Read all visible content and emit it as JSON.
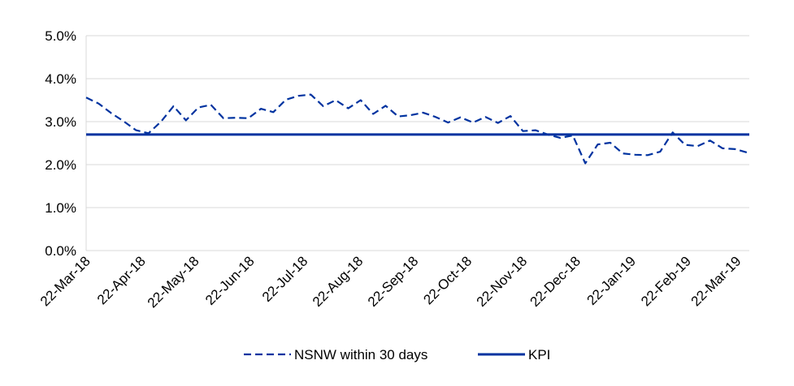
{
  "colors": {
    "series": "#0033a0",
    "grid": "#d9d9d9"
  },
  "chart_data": {
    "type": "line",
    "title": "",
    "xlabel": "",
    "ylabel": "",
    "ylim": [
      0,
      0.05
    ],
    "yticks": [
      "0.0%",
      "1.0%",
      "2.0%",
      "3.0%",
      "4.0%",
      "5.0%"
    ],
    "xlim": [
      "2018-03-22",
      "2019-03-29"
    ],
    "xticks": [
      {
        "date": "2018-03-22",
        "label": "22-Mar-18"
      },
      {
        "date": "2018-04-22",
        "label": "22-Apr-18"
      },
      {
        "date": "2018-05-22",
        "label": "22-May-18"
      },
      {
        "date": "2018-06-22",
        "label": "22-Jun-18"
      },
      {
        "date": "2018-07-22",
        "label": "22-Jul-18"
      },
      {
        "date": "2018-08-22",
        "label": "22-Aug-18"
      },
      {
        "date": "2018-09-22",
        "label": "22-Sep-18"
      },
      {
        "date": "2018-10-22",
        "label": "22-Oct-18"
      },
      {
        "date": "2018-11-22",
        "label": "22-Nov-18"
      },
      {
        "date": "2018-12-22",
        "label": "22-Dec-18"
      },
      {
        "date": "2019-01-22",
        "label": "22-Jan-19"
      },
      {
        "date": "2019-02-22",
        "label": "22-Feb-19"
      },
      {
        "date": "2019-03-22",
        "label": "22-Mar-19"
      }
    ],
    "grid": true,
    "legend_position": "bottom",
    "series": [
      {
        "name": "NSNW within 30 days",
        "style": "dashed",
        "points": [
          [
            "2018-03-22",
            0.0356
          ],
          [
            "2018-03-29",
            0.0342
          ],
          [
            "2018-04-05",
            0.032
          ],
          [
            "2018-04-12",
            0.0301
          ],
          [
            "2018-04-19",
            0.028
          ],
          [
            "2018-04-26",
            0.0273
          ],
          [
            "2018-05-03",
            0.03
          ],
          [
            "2018-05-10",
            0.0336
          ],
          [
            "2018-05-17",
            0.0303
          ],
          [
            "2018-05-24",
            0.0333
          ],
          [
            "2018-05-31",
            0.0339
          ],
          [
            "2018-06-07",
            0.0308
          ],
          [
            "2018-06-14",
            0.0309
          ],
          [
            "2018-06-21",
            0.0308
          ],
          [
            "2018-06-28",
            0.033
          ],
          [
            "2018-07-05",
            0.0322
          ],
          [
            "2018-07-12",
            0.0351
          ],
          [
            "2018-07-19",
            0.036
          ],
          [
            "2018-07-26",
            0.0363
          ],
          [
            "2018-08-02",
            0.0336
          ],
          [
            "2018-08-09",
            0.035
          ],
          [
            "2018-08-16",
            0.0331
          ],
          [
            "2018-08-23",
            0.035
          ],
          [
            "2018-08-30",
            0.0318
          ],
          [
            "2018-09-06",
            0.0337
          ],
          [
            "2018-09-13",
            0.0312
          ],
          [
            "2018-09-20",
            0.0315
          ],
          [
            "2018-09-27",
            0.0321
          ],
          [
            "2018-10-04",
            0.0311
          ],
          [
            "2018-10-11",
            0.0298
          ],
          [
            "2018-10-18",
            0.031
          ],
          [
            "2018-10-25",
            0.0298
          ],
          [
            "2018-11-01",
            0.0311
          ],
          [
            "2018-11-08",
            0.0297
          ],
          [
            "2018-11-15",
            0.0313
          ],
          [
            "2018-11-22",
            0.0278
          ],
          [
            "2018-11-29",
            0.028
          ],
          [
            "2018-12-06",
            0.027
          ],
          [
            "2018-12-13",
            0.0262
          ],
          [
            "2018-12-20",
            0.0268
          ],
          [
            "2018-12-27",
            0.0203
          ],
          [
            "2019-01-03",
            0.0247
          ],
          [
            "2019-01-10",
            0.0251
          ],
          [
            "2019-01-17",
            0.0226
          ],
          [
            "2019-01-24",
            0.0223
          ],
          [
            "2019-01-31",
            0.0222
          ],
          [
            "2019-02-07",
            0.023
          ],
          [
            "2019-02-14",
            0.0275
          ],
          [
            "2019-02-21",
            0.0246
          ],
          [
            "2019-02-28",
            0.0243
          ],
          [
            "2019-03-07",
            0.0256
          ],
          [
            "2019-03-14",
            0.0238
          ],
          [
            "2019-03-21",
            0.0236
          ],
          [
            "2019-03-28",
            0.0228
          ],
          [
            "2019-03-29",
            0.0228
          ]
        ]
      },
      {
        "name": "KPI",
        "style": "solid",
        "points": [
          [
            "2018-03-22",
            0.027
          ],
          [
            "2019-03-29",
            0.027
          ]
        ]
      }
    ]
  }
}
